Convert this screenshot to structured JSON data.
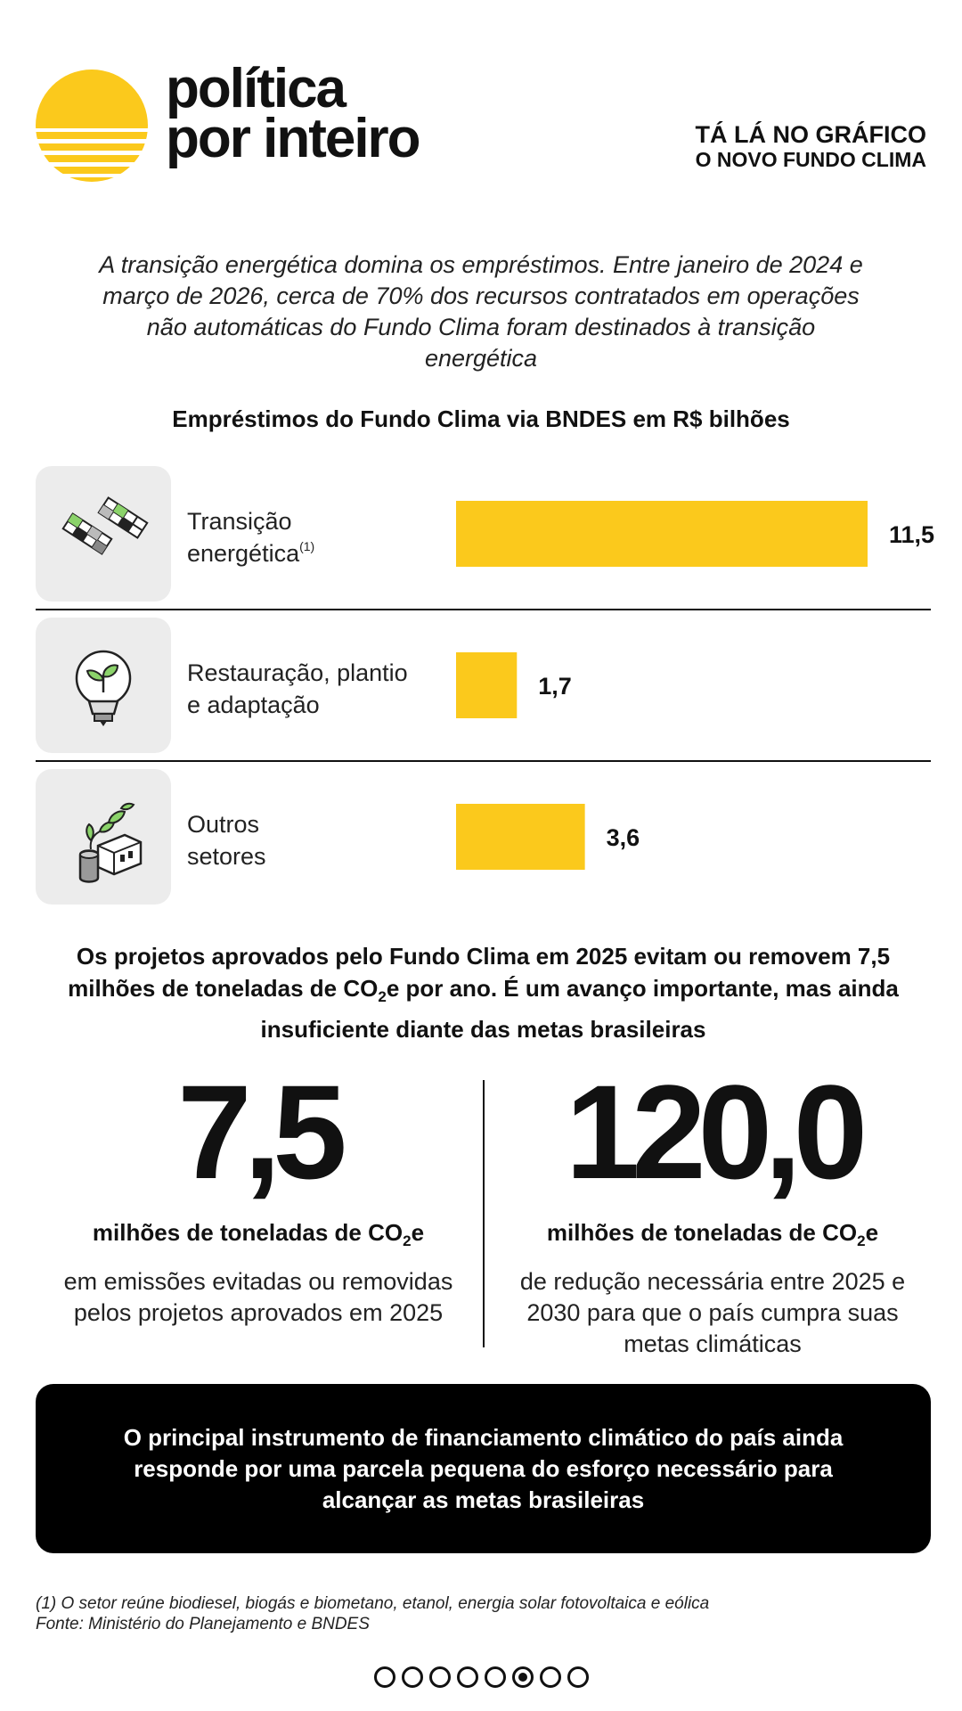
{
  "brand": {
    "name_line1": "política",
    "name_line2": "por inteiro",
    "accent_color": "#fbc91c"
  },
  "kicker": {
    "line1": "TÁ LÁ NO GRÁFICO",
    "line2": "O NOVO FUNDO CLIMA"
  },
  "intro": "A transição energética domina os empréstimos. Entre janeiro de 2024 e março de 2026, cerca de 70% dos recursos contratados em operações não automáticas do Fundo Clima foram destinados à transição energética",
  "chart_data": {
    "type": "bar",
    "orientation": "horizontal",
    "title": "Empréstimos do Fundo Clima via BNDES em R$ bilhões",
    "categories": [
      "Transição energética",
      "Restauração, plantio e adaptação",
      "Outros setores"
    ],
    "values": [
      11.5,
      1.7,
      3.6
    ],
    "value_labels": [
      "11,5",
      "1,7",
      "3,6"
    ],
    "bar_color": "#fbc91c",
    "xlim": [
      0,
      11.5
    ],
    "grid": false
  },
  "rows": [
    {
      "label_line1": "Transição",
      "label_line2": "energética",
      "footnote_mark": "(1)",
      "icon": "solar-panels-icon"
    },
    {
      "label_line1": "Restauração, plantio",
      "label_line2": "e adaptação",
      "footnote_mark": "",
      "icon": "sprout-lightbulb-icon"
    },
    {
      "label_line1": "Outros",
      "label_line2": "setores",
      "footnote_mark": "",
      "icon": "green-factory-icon"
    }
  ],
  "summary": {
    "part1": "Os projetos aprovados pelo Fundo Clima em 2025 evitam ou removem 7,5 milhões de toneladas de CO",
    "sub": "2",
    "part2": "e por ano. É um avanço importante, mas ainda insuficiente diante das metas brasileiras"
  },
  "stats": [
    {
      "value": "7,5",
      "unit_prefix": "milhões de toneladas de CO",
      "unit_sub": "2",
      "unit_suffix": "e",
      "description": "em emissões evitadas ou removidas pelos projetos aprovados em 2025"
    },
    {
      "value": "120,0",
      "unit_prefix": "milhões de toneladas de CO",
      "unit_sub": "2",
      "unit_suffix": "e",
      "description": "de redução necessária entre 2025 e 2030 para que o país cumpra suas metas climáticas"
    }
  ],
  "conclusion": "O principal instrumento de financiamento climático do país ainda responde por uma parcela pequena do esforço necessário para alcançar as metas brasileiras",
  "footnotes": {
    "note1": "(1) O setor reúne biodiesel, biogás e biometano, etanol, energia solar fotovoltaica e eólica",
    "source": "Fonte: Ministério do Planejamento e BNDES"
  },
  "pager": {
    "total": 8,
    "active_index": 5
  }
}
